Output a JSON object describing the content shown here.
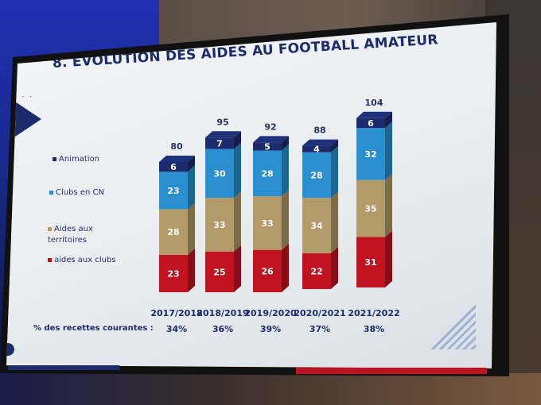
{
  "slide": {
    "title": "8. ÉVOLUTION DES AIDES AU FOOTBALL AMATEUR",
    "percent_label": "% des recettes courantes :"
  },
  "legend": [
    {
      "name": "Animation",
      "color": "#1b2b6b"
    },
    {
      "name": "Clubs en CN",
      "color": "#2a8fce"
    },
    {
      "name": "Aides aux territoires",
      "color": "#b39a69"
    },
    {
      "name": "aides aux clubs",
      "color": "#c1121f"
    }
  ],
  "chart_data": {
    "type": "bar",
    "stacked": true,
    "title": "8. ÉVOLUTION DES AIDES AU FOOTBALL AMATEUR",
    "categories": [
      "2017/2018",
      "2018/2019",
      "2019/2020",
      "2020/2021",
      "2021/2022"
    ],
    "series": [
      {
        "name": "aides aux clubs",
        "values": [
          23,
          25,
          26,
          22,
          31
        ],
        "color": "#c1121f"
      },
      {
        "name": "Aides aux territoires",
        "values": [
          28,
          33,
          33,
          34,
          35
        ],
        "color": "#b39a69"
      },
      {
        "name": "Clubs en CN",
        "values": [
          23,
          30,
          28,
          28,
          32
        ],
        "color": "#2a8fce"
      },
      {
        "name": "Animation",
        "values": [
          6,
          7,
          5,
          4,
          6
        ],
        "color": "#1b2b6b"
      }
    ],
    "totals": [
      80,
      95,
      92,
      88,
      104
    ],
    "percent_of_revenue": [
      "34%",
      "36%",
      "39%",
      "37%",
      "38%"
    ]
  }
}
